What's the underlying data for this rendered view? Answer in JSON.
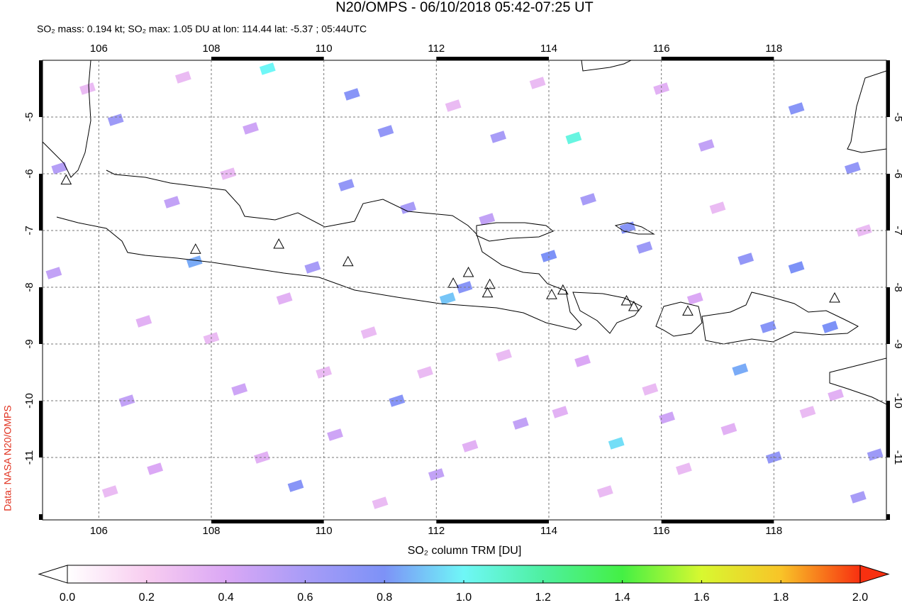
{
  "chart_data": {
    "type": "map",
    "title": "N20/OMPS - 06/10/2018 05:42-07:25 UT",
    "subtitle": "SO₂ mass: 0.194 kt; SO₂ max: 1.05 DU at lon: 114.44 lat: -5.37 ; 05:44UTC",
    "colorbar_label": "SO₂ column TRM [DU]",
    "credit": "Data: NASA N20/OMPS",
    "xlim": [
      105,
      120
    ],
    "ylim": [
      -12.1,
      -4
    ],
    "xticks": [
      106,
      108,
      110,
      112,
      114,
      116,
      118
    ],
    "yticks": [
      -5,
      -6,
      -7,
      -8,
      -9,
      -10,
      -11
    ],
    "grid": true,
    "clim": [
      0,
      2
    ],
    "cticks": [
      {
        "value": 0,
        "label": "0.0"
      },
      {
        "value": 0.2,
        "label": "0.2"
      },
      {
        "value": 0.4,
        "label": "0.4"
      },
      {
        "value": 0.6,
        "label": "0.6"
      },
      {
        "value": 0.8,
        "label": "0.8"
      },
      {
        "value": 1,
        "label": "1.0"
      },
      {
        "value": 1.2,
        "label": "1.2"
      },
      {
        "value": 1.4,
        "label": "1.4"
      },
      {
        "value": 1.6,
        "label": "1.6"
      },
      {
        "value": 1.8,
        "label": "1.8"
      },
      {
        "value": 2,
        "label": "2.0"
      }
    ],
    "colormap": [
      "#ffffff",
      "#f8cdf0",
      "#dba8f5",
      "#a89cf7",
      "#7d92f7",
      "#6ff7f7",
      "#4ef0a0",
      "#44f044",
      "#d8f830",
      "#f8c428",
      "#f83010"
    ],
    "pixels": {
      "lon": [
        109.0,
        114.44,
        115.2,
        117.4,
        112.2,
        107.7,
        112.5,
        110.5,
        111.1,
        106.3,
        110.4,
        111.3,
        109.5,
        114.0,
        115.4,
        117.5,
        118.4,
        119.0,
        117.9,
        119.4,
        118.4,
        115.7,
        113.1,
        111.5,
        109.8,
        107.3,
        105.3,
        105.2,
        106.5,
        108.5,
        114.6,
        116.1,
        118.0,
        119.8,
        119.5,
        112.0,
        113.5,
        110.2,
        107.0,
        116.8,
        114.7,
        112.9,
        108.7,
        119.1,
        116.6,
        105.8,
        107.5,
        108.3,
        109.3,
        110.8,
        111.8,
        113.2,
        114.2,
        115.0,
        116.4,
        117.2,
        118.6,
        119.6,
        117.0,
        116.0,
        113.8,
        112.3,
        106.8,
        108.0,
        110.0,
        112.6,
        106.2,
        108.9,
        111.0,
        115.8
      ],
      "lat": [
        -4.15,
        -5.37,
        -10.75,
        -9.45,
        -8.2,
        -7.55,
        -8.0,
        -4.6,
        -5.25,
        -5.05,
        -6.2,
        -10.0,
        -11.5,
        -7.45,
        -6.95,
        -7.5,
        -7.65,
        -8.7,
        -8.7,
        -5.9,
        -4.85,
        -7.3,
        -5.35,
        -6.6,
        -7.65,
        -6.5,
        -5.9,
        -7.75,
        -10.0,
        -9.8,
        -9.3,
        -10.3,
        -11.0,
        -10.95,
        -11.7,
        -11.3,
        -10.4,
        -10.6,
        -11.2,
        -5.5,
        -6.45,
        -6.8,
        -5.2,
        -9.9,
        -8.2,
        -4.5,
        -4.3,
        -6.0,
        -8.2,
        -8.8,
        -9.5,
        -9.2,
        -10.2,
        -11.6,
        -11.2,
        -10.5,
        -10.2,
        -7.0,
        -6.6,
        -4.5,
        -4.4,
        -4.8,
        -8.6,
        -8.9,
        -9.5,
        -10.8,
        -11.6,
        -11.0,
        -11.8,
        -9.8
      ],
      "values": [
        1.0,
        1.05,
        0.95,
        0.85,
        0.9,
        0.85,
        0.75,
        0.75,
        0.7,
        0.65,
        0.7,
        0.75,
        0.75,
        0.8,
        0.75,
        0.7,
        0.8,
        0.8,
        0.75,
        0.7,
        0.75,
        0.65,
        0.6,
        0.6,
        0.6,
        0.5,
        0.55,
        0.5,
        0.5,
        0.45,
        0.4,
        0.45,
        0.7,
        0.65,
        0.6,
        0.5,
        0.5,
        0.45,
        0.4,
        0.5,
        0.6,
        0.5,
        0.45,
        0.35,
        0.4,
        0.3,
        0.3,
        0.3,
        0.35,
        0.3,
        0.3,
        0.3,
        0.35,
        0.3,
        0.3,
        0.35,
        0.3,
        0.3,
        0.3,
        0.35,
        0.3,
        0.3,
        0.35,
        0.3,
        0.3,
        0.35,
        0.3,
        0.35,
        0.3,
        0.3
      ]
    },
    "volcanoes": {
      "lon": [
        105.42,
        107.72,
        109.2,
        110.43,
        112.3,
        112.57,
        112.95,
        112.91,
        114.05,
        114.25,
        115.38,
        115.51,
        116.47,
        119.08
      ],
      "lat": [
        -6.12,
        -7.34,
        -7.25,
        -7.56,
        -7.94,
        -7.75,
        -7.96,
        -8.11,
        -8.14,
        -8.06,
        -8.25,
        -8.35,
        -8.43,
        -8.2
      ]
    }
  }
}
